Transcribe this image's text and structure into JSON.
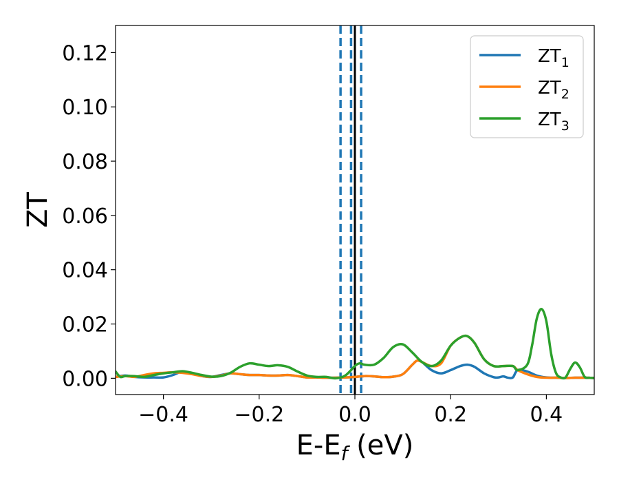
{
  "chart_data": {
    "type": "line",
    "title": "",
    "xlabel": "E-E",
    "xlabel_sub": "f",
    "xlabel_unit": " (eV)",
    "ylabel": "ZT",
    "xlim": [
      -0.5,
      0.5
    ],
    "ylim": [
      -0.006,
      0.13
    ],
    "xticks": [
      -0.4,
      -0.2,
      0.0,
      0.2,
      0.4
    ],
    "xtick_labels": [
      "−0.4",
      "−0.2",
      "0.0",
      "0.2",
      "0.4"
    ],
    "yticks": [
      0.0,
      0.02,
      0.04,
      0.06,
      0.08,
      0.1,
      0.12
    ],
    "ytick_labels": [
      "0.00",
      "0.02",
      "0.04",
      "0.06",
      "0.08",
      "0.10",
      "0.12"
    ],
    "grid": false,
    "legend": "top-right",
    "vlines": [
      {
        "x": 0.0,
        "style": "solid",
        "color": "#000000"
      },
      {
        "x": -0.03,
        "style": "dashed",
        "color": "#1f77b4"
      },
      {
        "x": -0.008,
        "style": "dashed",
        "color": "#1f77b4"
      },
      {
        "x": 0.013,
        "style": "dashed",
        "color": "#1f77b4"
      }
    ],
    "series": [
      {
        "name": "ZT",
        "name_sub": "1",
        "color": "#1f77b4",
        "x": [
          -0.5,
          -0.48,
          -0.46,
          -0.44,
          -0.42,
          -0.4,
          -0.38,
          -0.36,
          -0.34,
          -0.32,
          -0.3,
          -0.28,
          -0.26,
          -0.24,
          -0.22,
          -0.2,
          -0.18,
          -0.16,
          -0.14,
          -0.12,
          -0.1,
          -0.08,
          -0.06,
          -0.04,
          -0.02,
          0.0,
          0.02,
          0.04,
          0.06,
          0.08,
          0.1,
          0.12,
          0.13,
          0.14,
          0.16,
          0.18,
          0.2,
          0.22,
          0.235,
          0.25,
          0.27,
          0.29,
          0.3,
          0.31,
          0.32,
          0.33,
          0.34,
          0.36,
          0.38,
          0.4,
          0.42,
          0.44,
          0.46,
          0.48,
          0.5
        ],
        "y": [
          0.0005,
          0.001,
          0.0005,
          0.0003,
          0.0003,
          0.0003,
          0.0012,
          0.0025,
          0.0018,
          0.0008,
          0.0005,
          0.0012,
          0.0018,
          0.0015,
          0.0012,
          0.0012,
          0.001,
          0.001,
          0.0012,
          0.0008,
          0.0003,
          0.0003,
          0.0002,
          0.0002,
          0.0003,
          0.0005,
          0.0008,
          0.0007,
          0.0004,
          0.0006,
          0.0015,
          0.005,
          0.0065,
          0.006,
          0.003,
          0.0018,
          0.003,
          0.0045,
          0.005,
          0.0042,
          0.0018,
          0.0004,
          0.0003,
          0.0007,
          0.0002,
          0.0003,
          0.003,
          0.0025,
          0.001,
          0.0003,
          0.0002,
          0.0001,
          0.0002,
          0.0002,
          0.0001
        ]
      },
      {
        "name": "ZT",
        "name_sub": "2",
        "color": "#ff7f0e",
        "x": [
          -0.5,
          -0.48,
          -0.46,
          -0.44,
          -0.42,
          -0.4,
          -0.38,
          -0.36,
          -0.34,
          -0.32,
          -0.3,
          -0.28,
          -0.26,
          -0.24,
          -0.22,
          -0.2,
          -0.18,
          -0.16,
          -0.14,
          -0.12,
          -0.1,
          -0.08,
          -0.06,
          -0.04,
          -0.02,
          0.0,
          0.02,
          0.04,
          0.06,
          0.08,
          0.1,
          0.12,
          0.13,
          0.14,
          0.16,
          0.18,
          0.2,
          0.22,
          0.235,
          0.25,
          0.27,
          0.29,
          0.31,
          0.33,
          0.34,
          0.36,
          0.38,
          0.4,
          0.42,
          0.44,
          0.46,
          0.48,
          0.5
        ],
        "y": [
          0.0005,
          0.0008,
          0.0005,
          0.0012,
          0.0018,
          0.002,
          0.0022,
          0.002,
          0.0015,
          0.0008,
          0.0005,
          0.001,
          0.0018,
          0.0015,
          0.0012,
          0.0012,
          0.001,
          0.001,
          0.0012,
          0.0008,
          0.0003,
          0.0003,
          0.0002,
          0.0002,
          0.0003,
          0.0005,
          0.0008,
          0.0007,
          0.0004,
          0.0006,
          0.0015,
          0.005,
          0.0065,
          0.006,
          0.0045,
          0.0055,
          0.012,
          0.015,
          0.0155,
          0.013,
          0.007,
          0.0045,
          0.0045,
          0.0045,
          0.003,
          0.0015,
          0.0005,
          0.0002,
          0.0002,
          0.0001,
          0.0002,
          0.0002,
          0.0001
        ]
      },
      {
        "name": "ZT",
        "name_sub": "3",
        "color": "#2ca02c",
        "x": [
          -0.5,
          -0.49,
          -0.48,
          -0.46,
          -0.44,
          -0.42,
          -0.4,
          -0.38,
          -0.36,
          -0.34,
          -0.32,
          -0.3,
          -0.28,
          -0.26,
          -0.24,
          -0.22,
          -0.2,
          -0.18,
          -0.16,
          -0.14,
          -0.12,
          -0.1,
          -0.08,
          -0.06,
          -0.04,
          -0.02,
          0.0,
          0.01,
          0.02,
          0.04,
          0.06,
          0.08,
          0.1,
          0.12,
          0.14,
          0.16,
          0.18,
          0.2,
          0.22,
          0.235,
          0.25,
          0.27,
          0.29,
          0.31,
          0.33,
          0.34,
          0.36,
          0.37,
          0.38,
          0.39,
          0.4,
          0.41,
          0.42,
          0.43,
          0.44,
          0.45,
          0.46,
          0.47,
          0.48,
          0.49,
          0.5
        ],
        "y": [
          0.0025,
          0.0005,
          0.0008,
          0.0008,
          0.0005,
          0.0012,
          0.0018,
          0.0022,
          0.0026,
          0.002,
          0.0012,
          0.0006,
          0.0008,
          0.002,
          0.0042,
          0.0055,
          0.005,
          0.0045,
          0.0048,
          0.0042,
          0.0025,
          0.001,
          0.0005,
          0.0005,
          0.0,
          0.001,
          0.0045,
          0.0055,
          0.005,
          0.005,
          0.0075,
          0.0115,
          0.0125,
          0.0095,
          0.006,
          0.0045,
          0.0065,
          0.012,
          0.015,
          0.0155,
          0.013,
          0.007,
          0.0045,
          0.0045,
          0.0045,
          0.003,
          0.005,
          0.012,
          0.022,
          0.0255,
          0.021,
          0.009,
          0.002,
          0.0003,
          0.0003,
          0.0035,
          0.0058,
          0.004,
          0.0005,
          0.0002,
          0.0001
        ]
      }
    ]
  }
}
